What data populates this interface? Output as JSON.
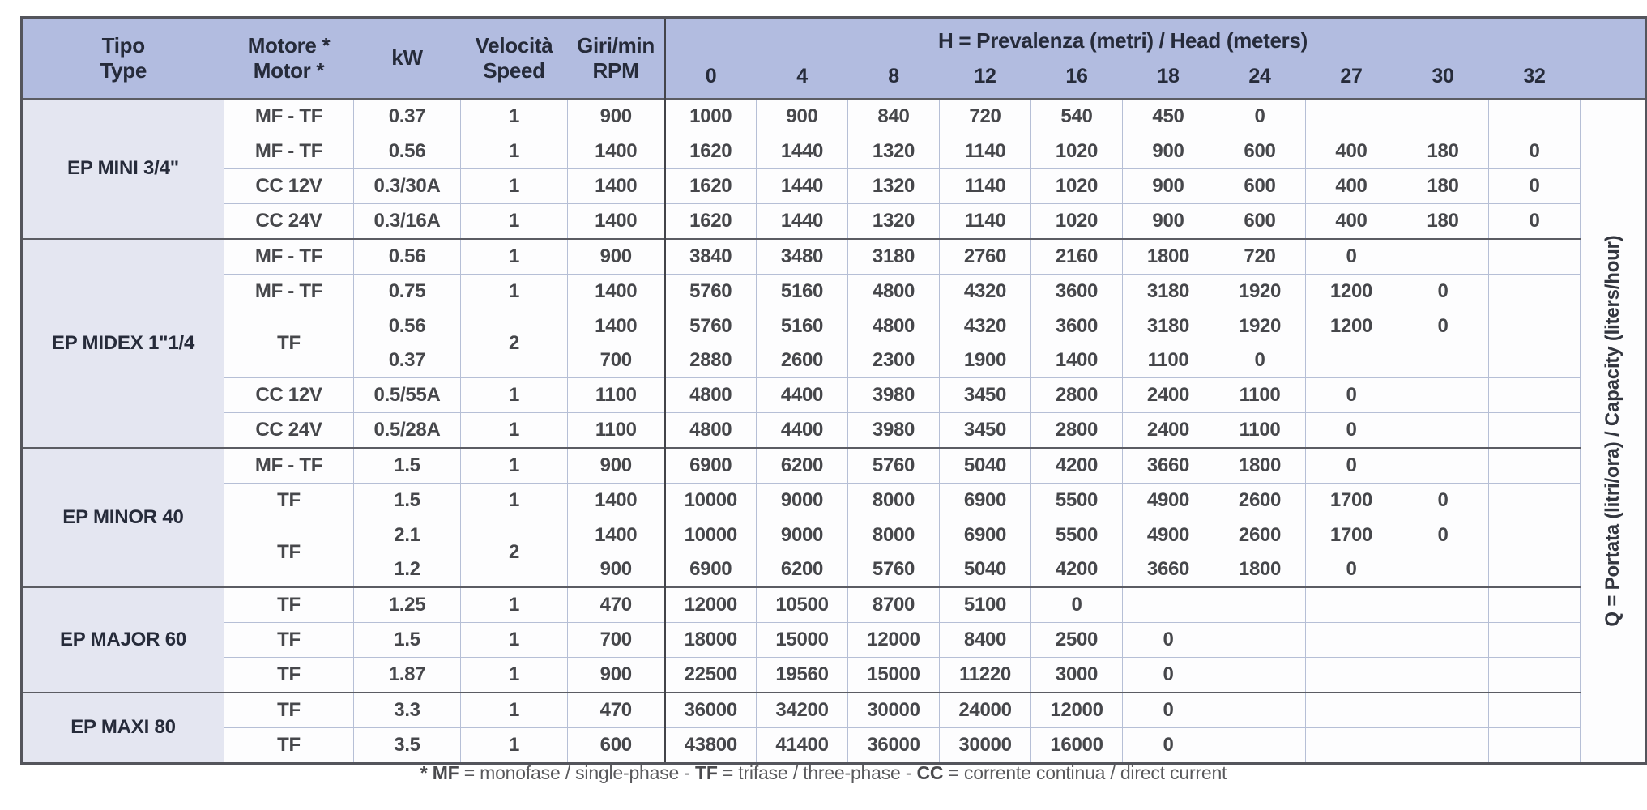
{
  "table": {
    "header": {
      "tipo": [
        "Tipo",
        "Type"
      ],
      "motore": [
        "Motore *",
        "Motor *"
      ],
      "kw": "kW",
      "velocita": [
        "Velocità",
        "Speed"
      ],
      "rpm": [
        "Giri/min",
        "RPM"
      ],
      "h_bold": "H",
      "h_rest": " = Prevalenza (metri) / Head (meters)",
      "h_cols": [
        "0",
        "4",
        "8",
        "12",
        "16",
        "18",
        "24",
        "27",
        "30",
        "32"
      ]
    },
    "q_bold": "Q",
    "q_rest": " = Portata (litri/ora) / Capacity (liters/hour)",
    "groups": [
      {
        "tipo": "EP MINI 3/4\"",
        "rows": [
          {
            "motore": "MF - TF",
            "kw": "0.37",
            "speed": "1",
            "rpm": "900",
            "h": [
              "1000",
              "900",
              "840",
              "720",
              "540",
              "450",
              "0",
              "",
              "",
              ""
            ]
          },
          {
            "motore": "MF - TF",
            "kw": "0.56",
            "speed": "1",
            "rpm": "1400",
            "h": [
              "1620",
              "1440",
              "1320",
              "1140",
              "1020",
              "900",
              "600",
              "400",
              "180",
              "0"
            ]
          },
          {
            "motore": "CC 12V",
            "kw": "0.3/30A",
            "speed": "1",
            "rpm": "1400",
            "h": [
              "1620",
              "1440",
              "1320",
              "1140",
              "1020",
              "900",
              "600",
              "400",
              "180",
              "0"
            ]
          },
          {
            "motore": "CC 24V",
            "kw": "0.3/16A",
            "speed": "1",
            "rpm": "1400",
            "h": [
              "1620",
              "1440",
              "1320",
              "1140",
              "1020",
              "900",
              "600",
              "400",
              "180",
              "0"
            ]
          }
        ]
      },
      {
        "tipo": "EP MIDEX 1\"1/4",
        "rows": [
          {
            "motore": "MF - TF",
            "kw": "0.56",
            "speed": "1",
            "rpm": "900",
            "h": [
              "3840",
              "3480",
              "3180",
              "2760",
              "2160",
              "1800",
              "720",
              "0",
              "",
              ""
            ]
          },
          {
            "motore": "MF - TF",
            "kw": "0.75",
            "speed": "1",
            "rpm": "1400",
            "h": [
              "5760",
              "5160",
              "4800",
              "4320",
              "3600",
              "3180",
              "1920",
              "1200",
              "0",
              ""
            ]
          },
          {
            "motore": "TF",
            "kw": "0.56",
            "speed": "2",
            "rpm": "1400",
            "span": "start",
            "h": [
              "5760",
              "5160",
              "4800",
              "4320",
              "3600",
              "3180",
              "1920",
              "1200",
              "0",
              ""
            ]
          },
          {
            "kw": "0.37",
            "rpm": "700",
            "span": "cont",
            "h": [
              "2880",
              "2600",
              "2300",
              "1900",
              "1400",
              "1100",
              "0",
              "",
              "",
              ""
            ]
          },
          {
            "motore": "CC 12V",
            "kw": "0.5/55A",
            "speed": "1",
            "rpm": "1100",
            "h": [
              "4800",
              "4400",
              "3980",
              "3450",
              "2800",
              "2400",
              "1100",
              "0",
              "",
              ""
            ]
          },
          {
            "motore": "CC 24V",
            "kw": "0.5/28A",
            "speed": "1",
            "rpm": "1100",
            "h": [
              "4800",
              "4400",
              "3980",
              "3450",
              "2800",
              "2400",
              "1100",
              "0",
              "",
              ""
            ]
          }
        ]
      },
      {
        "tipo": "EP MINOR 40",
        "rows": [
          {
            "motore": "MF - TF",
            "kw": "1.5",
            "speed": "1",
            "rpm": "900",
            "h": [
              "6900",
              "6200",
              "5760",
              "5040",
              "4200",
              "3660",
              "1800",
              "0",
              "",
              ""
            ]
          },
          {
            "motore": "TF",
            "kw": "1.5",
            "speed": "1",
            "rpm": "1400",
            "h": [
              "10000",
              "9000",
              "8000",
              "6900",
              "5500",
              "4900",
              "2600",
              "1700",
              "0",
              ""
            ]
          },
          {
            "motore": "TF",
            "kw": "2.1",
            "speed": "2",
            "rpm": "1400",
            "span": "start",
            "h": [
              "10000",
              "9000",
              "8000",
              "6900",
              "5500",
              "4900",
              "2600",
              "1700",
              "0",
              ""
            ]
          },
          {
            "kw": "1.2",
            "rpm": "900",
            "span": "cont",
            "h": [
              "6900",
              "6200",
              "5760",
              "5040",
              "4200",
              "3660",
              "1800",
              "0",
              "",
              ""
            ]
          }
        ]
      },
      {
        "tipo": "EP MAJOR 60",
        "rows": [
          {
            "motore": "TF",
            "kw": "1.25",
            "speed": "1",
            "rpm": "470",
            "h": [
              "12000",
              "10500",
              "8700",
              "5100",
              "0",
              "",
              "",
              "",
              "",
              ""
            ]
          },
          {
            "motore": "TF",
            "kw": "1.5",
            "speed": "1",
            "rpm": "700",
            "h": [
              "18000",
              "15000",
              "12000",
              "8400",
              "2500",
              "0",
              "",
              "",
              "",
              ""
            ]
          },
          {
            "motore": "TF",
            "kw": "1.87",
            "speed": "1",
            "rpm": "900",
            "h": [
              "22500",
              "19560",
              "15000",
              "11220",
              "3000",
              "0",
              "",
              "",
              "",
              ""
            ]
          }
        ]
      },
      {
        "tipo": "EP MAXI 80",
        "rows": [
          {
            "motore": "TF",
            "kw": "3.3",
            "speed": "1",
            "rpm": "470",
            "h": [
              "36000",
              "34200",
              "30000",
              "24000",
              "12000",
              "0",
              "",
              "",
              "",
              ""
            ]
          },
          {
            "motore": "TF",
            "kw": "3.5",
            "speed": "1",
            "rpm": "600",
            "h": [
              "43800",
              "41400",
              "36000",
              "30000",
              "16000",
              "0",
              "",
              "",
              "",
              ""
            ]
          }
        ]
      }
    ]
  },
  "footnote": {
    "segments": [
      {
        "text": "* MF",
        "bold": true
      },
      {
        "text": " = monofase / single-phase - ",
        "bold": false
      },
      {
        "text": "TF",
        "bold": true
      },
      {
        "text": " = trifase / three-phase - ",
        "bold": false
      },
      {
        "text": "CC",
        "bold": true
      },
      {
        "text": " = corrente continua / direct current",
        "bold": false
      }
    ]
  },
  "colors": {
    "header_bg": "#b2bce0",
    "tipo_bg": "#e4e6f1",
    "border_dark": "#54555c",
    "border_light": "#b6bfd6",
    "text_header": "#262b3a",
    "text_data": "#46474b"
  }
}
